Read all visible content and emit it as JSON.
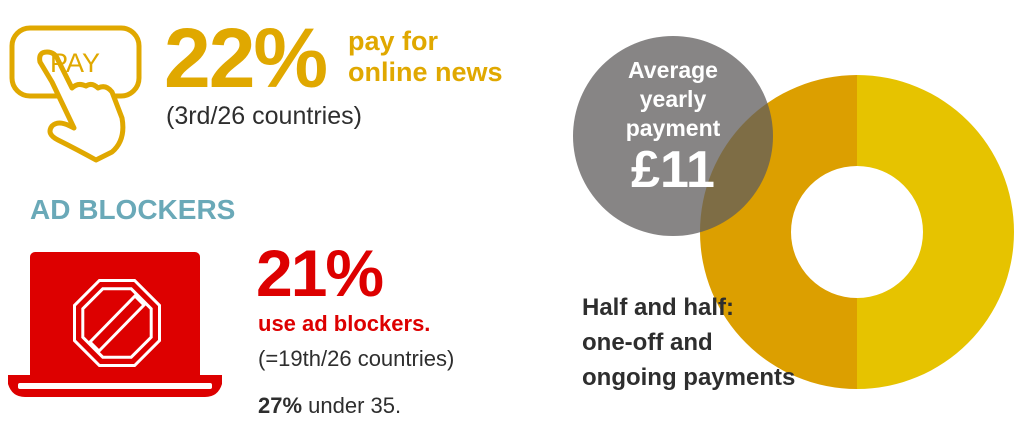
{
  "colors": {
    "gold": "#e0a800",
    "donut_left": "#dc9f00",
    "donut_right": "#e6c300",
    "grey_circle": "#5f5c5c",
    "red": "#dd0000",
    "teal": "#6aa9b8",
    "text": "#2e2e2e"
  },
  "pay": {
    "icon_label": "PAY",
    "icon": "hand-pressing-pay-button-icon",
    "percent": "22%",
    "line1": "pay for",
    "line2": "online news",
    "rank": "(3rd/26 countries)"
  },
  "ad_blockers": {
    "heading": "AD BLOCKERS",
    "icon": "laptop-stop-sign-icon",
    "percent": "21%",
    "caption": "use ad blockers.",
    "rank": "(=19th/26 countries)",
    "under35_value": "27%",
    "under35_text": " under 35."
  },
  "payment": {
    "line1": "Average",
    "line2": "yearly",
    "line3": "payment",
    "amount": "£11"
  },
  "chart_data": {
    "type": "pie",
    "donut": true,
    "slices": [
      {
        "label": "one-off",
        "value": 50,
        "color": "#dc9f00"
      },
      {
        "label": "ongoing",
        "value": 50,
        "color": "#e6c300"
      }
    ],
    "caption": [
      "Half and half:",
      "one-off and",
      "ongoing payments"
    ]
  }
}
